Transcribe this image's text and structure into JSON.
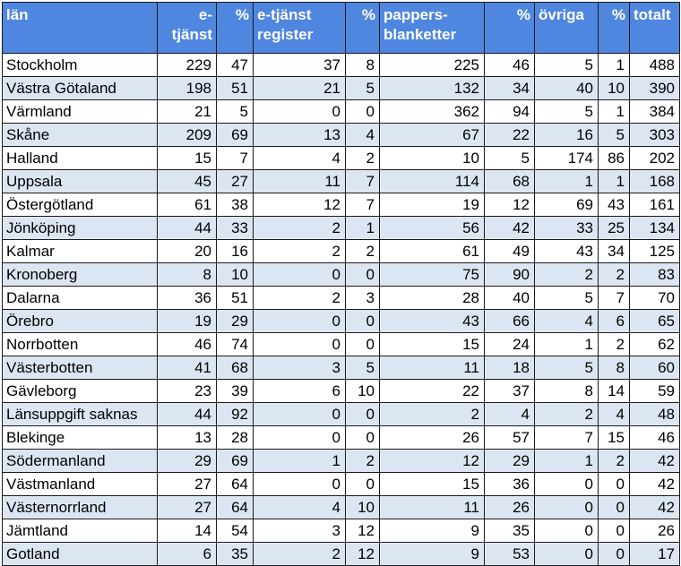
{
  "headers": {
    "lan": "län",
    "etjanst": "e-\ntjänst",
    "pct1": "%",
    "etjanst_register": "e-tjänst register",
    "pct2": "%",
    "pappersblanketter": "pappers-\nblanketter",
    "pct3": "%",
    "ovriga": "övriga",
    "pct4": "%",
    "totalt": "totalt"
  },
  "rows": [
    [
      "Stockholm",
      "229",
      "47",
      "37",
      "8",
      "225",
      "46",
      "5",
      "1",
      "488"
    ],
    [
      "Västra Götaland",
      "198",
      "51",
      "21",
      "5",
      "132",
      "34",
      "40",
      "10",
      "390"
    ],
    [
      "Värmland",
      "21",
      "5",
      "0",
      "0",
      "362",
      "94",
      "5",
      "1",
      "384"
    ],
    [
      "Skåne",
      "209",
      "69",
      "13",
      "4",
      "67",
      "22",
      "16",
      "5",
      "303"
    ],
    [
      "Halland",
      "15",
      "7",
      "4",
      "2",
      "10",
      "5",
      "174",
      "86",
      "202"
    ],
    [
      "Uppsala",
      "45",
      "27",
      "11",
      "7",
      "114",
      "68",
      "1",
      "1",
      "168"
    ],
    [
      "Östergötland",
      "61",
      "38",
      "12",
      "7",
      "19",
      "12",
      "69",
      "43",
      "161"
    ],
    [
      "Jönköping",
      "44",
      "33",
      "2",
      "1",
      "56",
      "42",
      "33",
      "25",
      "134"
    ],
    [
      "Kalmar",
      "20",
      "16",
      "2",
      "2",
      "61",
      "49",
      "43",
      "34",
      "125"
    ],
    [
      "Kronoberg",
      "8",
      "10",
      "0",
      "0",
      "75",
      "90",
      "2",
      "2",
      "83"
    ],
    [
      "Dalarna",
      "36",
      "51",
      "2",
      "3",
      "28",
      "40",
      "5",
      "7",
      "70"
    ],
    [
      "Örebro",
      "19",
      "29",
      "0",
      "0",
      "43",
      "66",
      "4",
      "6",
      "65"
    ],
    [
      "Norrbotten",
      "46",
      "74",
      "0",
      "0",
      "15",
      "24",
      "1",
      "2",
      "62"
    ],
    [
      "Västerbotten",
      "41",
      "68",
      "3",
      "5",
      "11",
      "18",
      "5",
      "8",
      "60"
    ],
    [
      "Gävleborg",
      "23",
      "39",
      "6",
      "10",
      "22",
      "37",
      "8",
      "14",
      "59"
    ],
    [
      "Länsuppgift saknas",
      "44",
      "92",
      "0",
      "0",
      "2",
      "4",
      "2",
      "4",
      "48"
    ],
    [
      "Blekinge",
      "13",
      "28",
      "0",
      "0",
      "26",
      "57",
      "7",
      "15",
      "46"
    ],
    [
      "Södermanland",
      "29",
      "69",
      "1",
      "2",
      "12",
      "29",
      "1",
      "2",
      "42"
    ],
    [
      "Västmanland",
      "27",
      "64",
      "0",
      "0",
      "15",
      "36",
      "0",
      "0",
      "42"
    ],
    [
      "Västernorrland",
      "27",
      "64",
      "4",
      "10",
      "11",
      "26",
      "0",
      "0",
      "42"
    ],
    [
      "Jämtland",
      "14",
      "54",
      "3",
      "12",
      "9",
      "35",
      "0",
      "0",
      "26"
    ],
    [
      "Gotland",
      "6",
      "35",
      "2",
      "12",
      "9",
      "53",
      "0",
      "0",
      "17"
    ]
  ]
}
